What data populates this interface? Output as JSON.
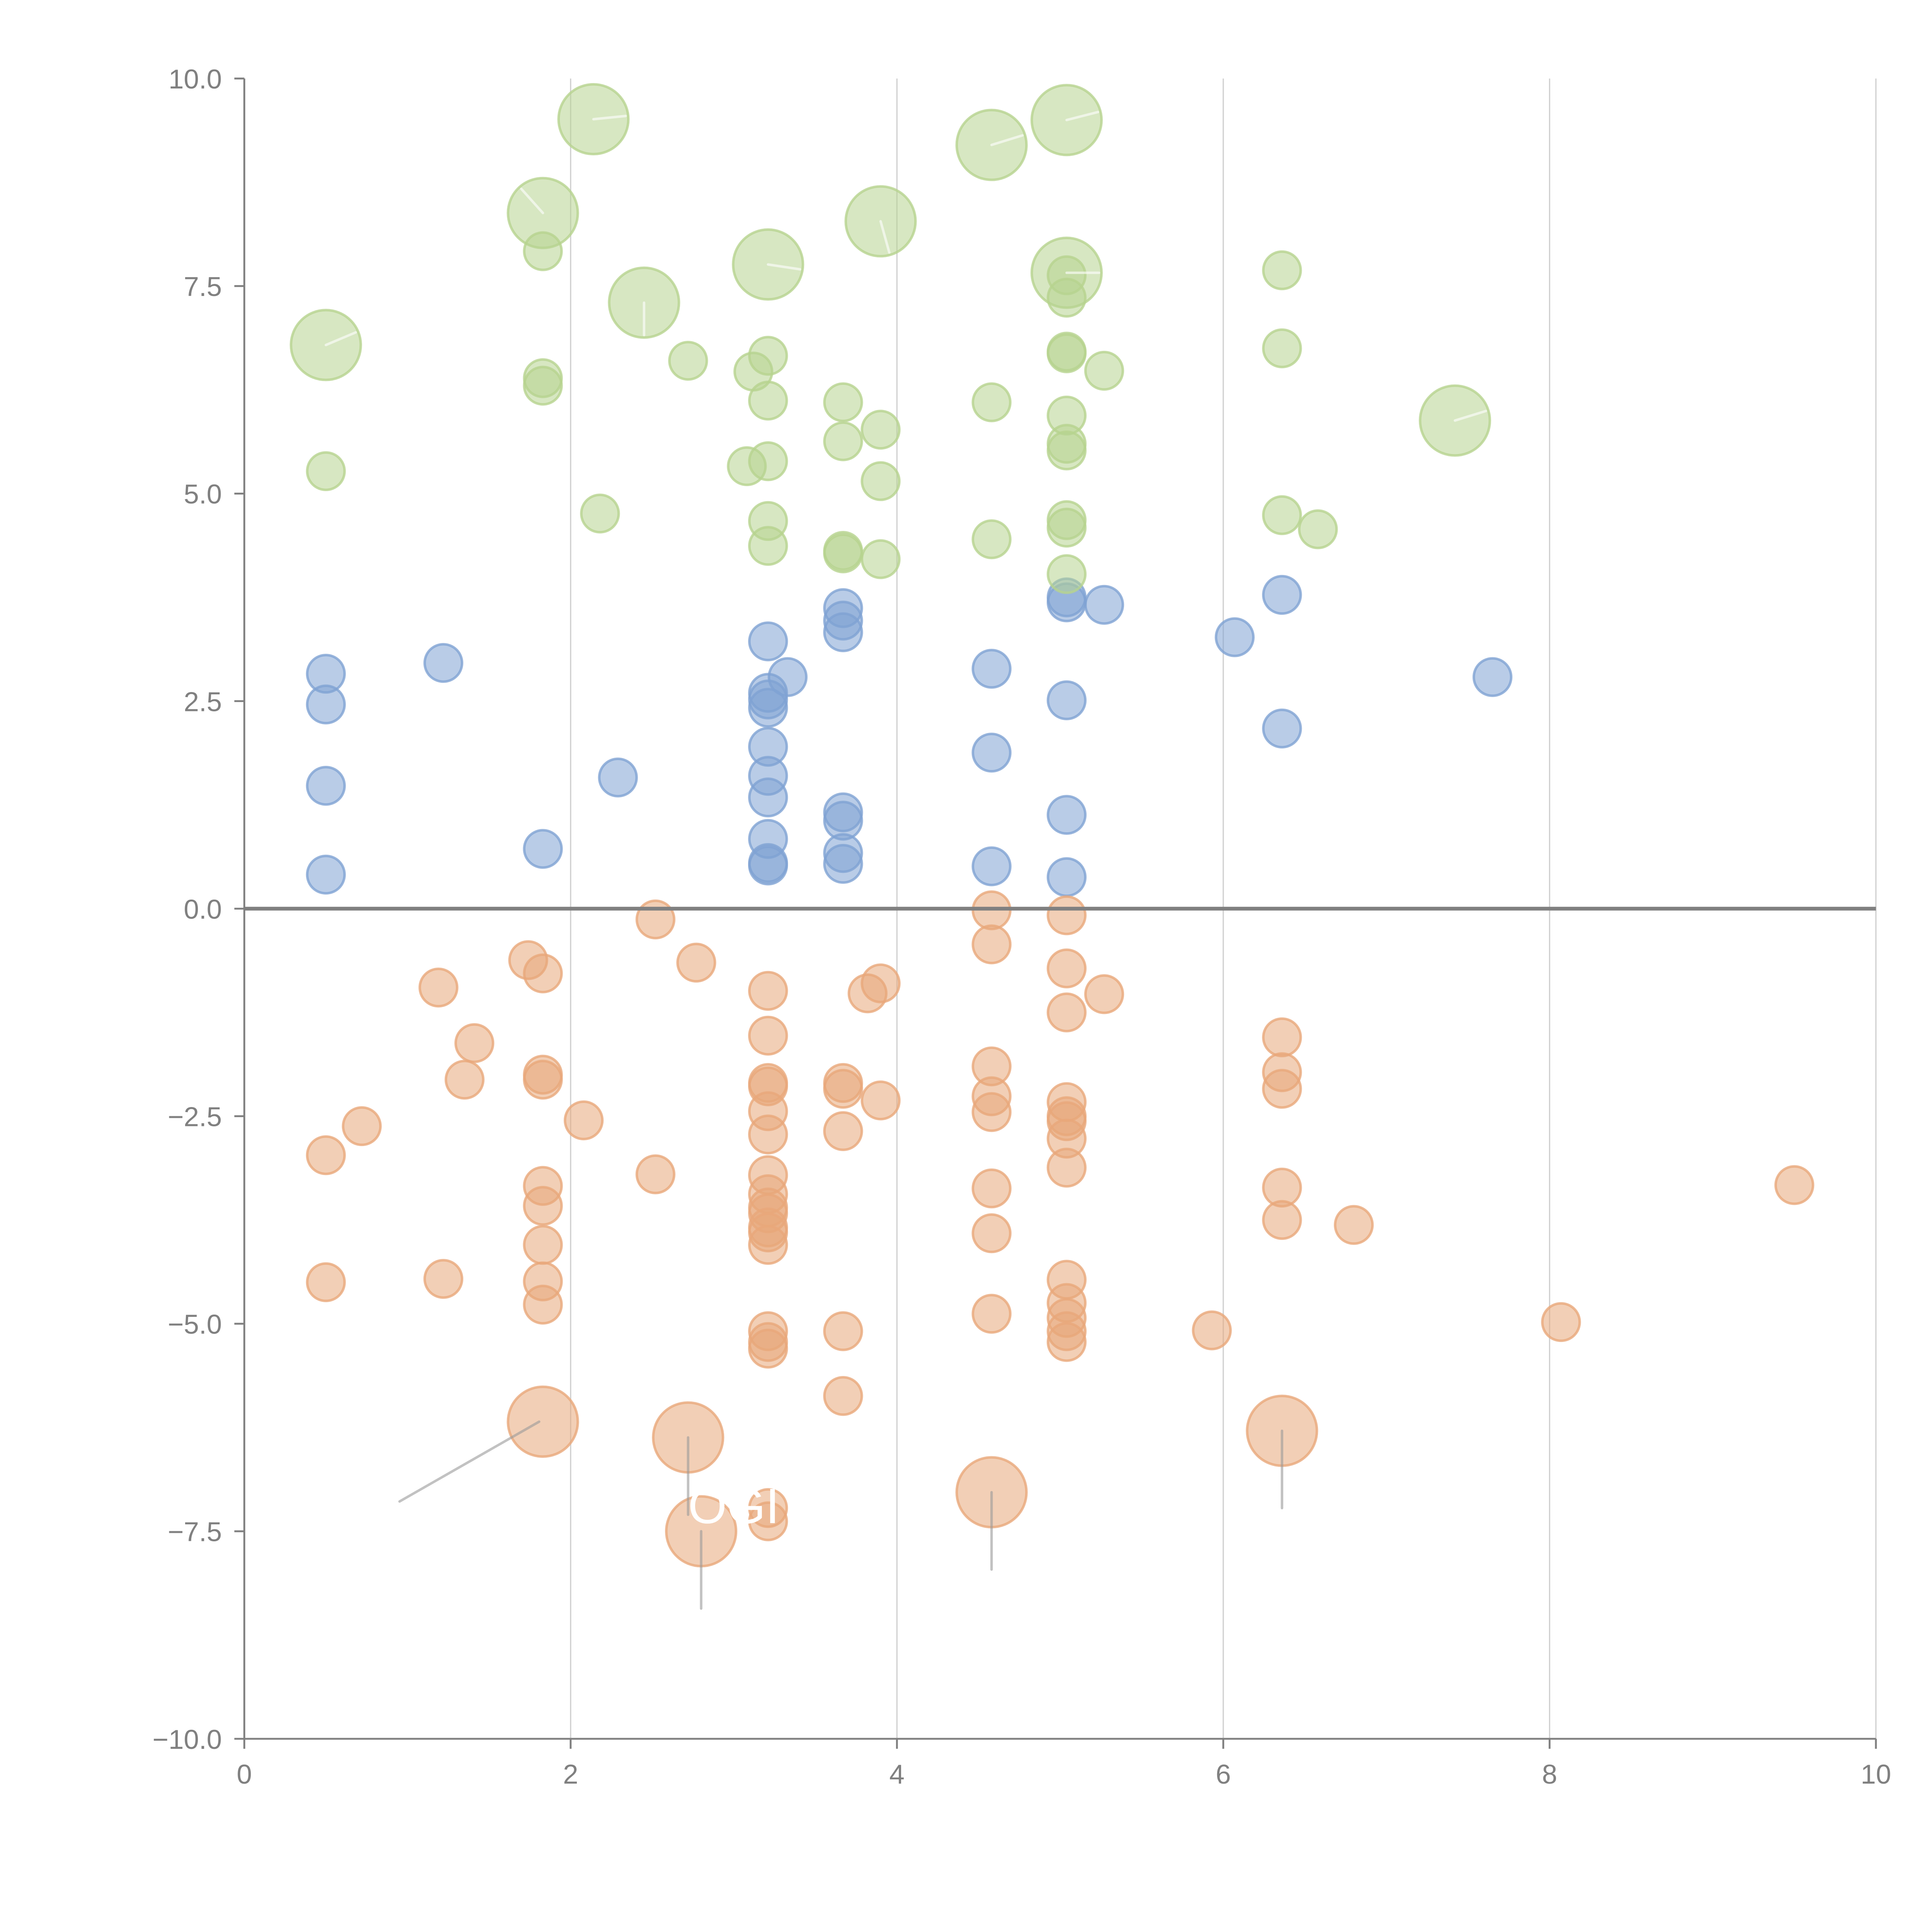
{
  "chart_data": {
    "type": "scatter",
    "title": "",
    "xlabel": "",
    "ylabel": "",
    "xlim": [
      0,
      10
    ],
    "ylim": [
      -10,
      10
    ],
    "x_ticks": [
      "0",
      "2",
      "4",
      "6",
      "8",
      "10"
    ],
    "x_tick_values": [
      0,
      2,
      4,
      6,
      8,
      10
    ],
    "y_ticks": [
      "−10.0",
      "−7.5",
      "−5.0",
      "−2.5",
      "0.0",
      "2.5",
      "5.0",
      "7.5",
      "10.0"
    ],
    "y_tick_values": [
      -10,
      -7.5,
      -5,
      -2.5,
      0,
      2.5,
      5,
      7.5,
      10
    ],
    "grid": "vertical",
    "zero_line": true,
    "legend": "none",
    "annotation_text": "OGI",
    "series": [
      {
        "name": "blue",
        "color": "#7fa3d3",
        "points": [
          [
            0.5,
            2.83
          ],
          [
            0.5,
            2.46
          ],
          [
            0.5,
            1.48
          ],
          [
            0.5,
            0.41
          ],
          [
            1.22,
            2.96
          ],
          [
            1.83,
            0.72
          ],
          [
            2.29,
            1.58
          ],
          [
            3.21,
            3.22
          ],
          [
            3.21,
            2.6
          ],
          [
            3.21,
            2.52
          ],
          [
            3.21,
            2.42
          ],
          [
            3.21,
            1.95
          ],
          [
            3.21,
            1.6
          ],
          [
            3.21,
            1.34
          ],
          [
            3.21,
            0.84
          ],
          [
            3.21,
            0.55
          ],
          [
            3.21,
            0.52
          ],
          [
            3.33,
            2.79
          ],
          [
            3.67,
            3.62
          ],
          [
            3.67,
            3.47
          ],
          [
            3.67,
            3.33
          ],
          [
            3.67,
            1.16
          ],
          [
            3.67,
            1.06
          ],
          [
            3.67,
            0.67
          ],
          [
            3.67,
            0.54
          ],
          [
            4.58,
            2.89
          ],
          [
            4.58,
            1.88
          ],
          [
            4.58,
            0.51
          ],
          [
            5.04,
            3.75
          ],
          [
            5.04,
            3.69
          ],
          [
            5.04,
            2.51
          ],
          [
            5.04,
            1.13
          ],
          [
            5.04,
            0.38
          ],
          [
            5.27,
            3.66
          ],
          [
            6.07,
            3.27
          ],
          [
            6.36,
            3.78
          ],
          [
            6.36,
            2.17
          ],
          [
            7.65,
            2.79
          ]
        ]
      },
      {
        "name": "green",
        "color": "#b6d38f",
        "points": [
          [
            0.5,
            5.27
          ],
          [
            1.83,
            7.92
          ],
          [
            1.83,
            6.39
          ],
          [
            1.83,
            6.3
          ],
          [
            2.18,
            4.76
          ],
          [
            2.72,
            6.6
          ],
          [
            3.08,
            5.33
          ],
          [
            3.12,
            6.47
          ],
          [
            3.21,
            6.66
          ],
          [
            3.21,
            6.12
          ],
          [
            3.21,
            5.39
          ],
          [
            3.21,
            4.67
          ],
          [
            3.21,
            4.37
          ],
          [
            3.67,
            6.1
          ],
          [
            3.67,
            5.63
          ],
          [
            3.67,
            4.31
          ],
          [
            3.67,
            4.28
          ],
          [
            3.9,
            5.77
          ],
          [
            3.9,
            5.15
          ],
          [
            3.9,
            4.21
          ],
          [
            4.58,
            6.1
          ],
          [
            4.58,
            4.45
          ],
          [
            5.04,
            7.63
          ],
          [
            5.04,
            7.36
          ],
          [
            5.04,
            6.71
          ],
          [
            5.04,
            6.69
          ],
          [
            5.04,
            5.94
          ],
          [
            5.04,
            5.6
          ],
          [
            5.04,
            5.52
          ],
          [
            5.04,
            4.68
          ],
          [
            5.04,
            4.59
          ],
          [
            5.04,
            4.03
          ],
          [
            5.27,
            6.48
          ],
          [
            6.36,
            7.69
          ],
          [
            6.36,
            6.75
          ],
          [
            6.36,
            4.74
          ],
          [
            6.58,
            4.57
          ]
        ],
        "large_points": [
          [
            0.5,
            6.79
          ],
          [
            1.83,
            8.38
          ],
          [
            2.14,
            9.51
          ],
          [
            2.45,
            7.3
          ],
          [
            3.21,
            7.76
          ],
          [
            3.9,
            8.28
          ],
          [
            4.58,
            9.2
          ],
          [
            5.04,
            9.5
          ],
          [
            5.04,
            7.66
          ],
          [
            7.42,
            5.88
          ]
        ]
      },
      {
        "name": "orange",
        "color": "#e8a77a",
        "points": [
          [
            0.5,
            -2.97
          ],
          [
            0.5,
            -4.5
          ],
          [
            0.72,
            -2.62
          ],
          [
            1.19,
            -0.95
          ],
          [
            1.22,
            -4.46
          ],
          [
            1.35,
            -2.06
          ],
          [
            1.41,
            -1.62
          ],
          [
            1.74,
            -0.62
          ],
          [
            1.83,
            -0.78
          ],
          [
            1.83,
            -2.0
          ],
          [
            1.83,
            -2.06
          ],
          [
            1.83,
            -3.34
          ],
          [
            1.83,
            -3.58
          ],
          [
            1.83,
            -4.05
          ],
          [
            1.83,
            -4.49
          ],
          [
            1.83,
            -4.77
          ],
          [
            2.08,
            -2.55
          ],
          [
            2.52,
            -0.13
          ],
          [
            2.52,
            -3.2
          ],
          [
            2.77,
            -0.65
          ],
          [
            3.21,
            -0.99
          ],
          [
            3.21,
            -1.53
          ],
          [
            3.21,
            -2.1
          ],
          [
            3.21,
            -2.14
          ],
          [
            3.21,
            -2.44
          ],
          [
            3.21,
            -2.72
          ],
          [
            3.21,
            -3.21
          ],
          [
            3.21,
            -3.44
          ],
          [
            3.21,
            -3.6
          ],
          [
            3.21,
            -3.67
          ],
          [
            3.21,
            -3.84
          ],
          [
            3.21,
            -3.9
          ],
          [
            3.21,
            -4.05
          ],
          [
            3.21,
            -5.09
          ],
          [
            3.21,
            -5.22
          ],
          [
            3.21,
            -5.3
          ],
          [
            3.21,
            -7.22
          ],
          [
            3.21,
            -7.38
          ],
          [
            3.67,
            -2.1
          ],
          [
            3.67,
            -2.17
          ],
          [
            3.67,
            -2.68
          ],
          [
            3.67,
            -5.09
          ],
          [
            3.67,
            -5.87
          ],
          [
            3.82,
            -1.02
          ],
          [
            3.9,
            -0.9
          ],
          [
            3.9,
            -2.31
          ],
          [
            4.58,
            -0.02
          ],
          [
            4.58,
            -0.43
          ],
          [
            4.58,
            -1.9
          ],
          [
            4.58,
            -2.26
          ],
          [
            4.58,
            -2.45
          ],
          [
            4.58,
            -3.37
          ],
          [
            4.58,
            -3.91
          ],
          [
            4.58,
            -4.88
          ],
          [
            5.04,
            -0.08
          ],
          [
            5.04,
            -0.72
          ],
          [
            5.04,
            -1.25
          ],
          [
            5.04,
            -2.33
          ],
          [
            5.04,
            -2.5
          ],
          [
            5.04,
            -2.56
          ],
          [
            5.04,
            -2.77
          ],
          [
            5.04,
            -3.12
          ],
          [
            5.04,
            -4.47
          ],
          [
            5.04,
            -4.75
          ],
          [
            5.04,
            -4.93
          ],
          [
            5.04,
            -5.09
          ],
          [
            5.04,
            -5.22
          ],
          [
            5.27,
            -1.03
          ],
          [
            5.93,
            -5.08
          ],
          [
            6.36,
            -1.55
          ],
          [
            6.36,
            -1.97
          ],
          [
            6.36,
            -2.17
          ],
          [
            6.36,
            -3.36
          ],
          [
            6.36,
            -3.75
          ],
          [
            6.8,
            -3.81
          ],
          [
            8.07,
            -4.98
          ],
          [
            9.5,
            -3.33
          ]
        ],
        "large_points": [
          [
            1.83,
            -6.18
          ],
          [
            2.72,
            -6.37
          ],
          [
            2.8,
            -7.5
          ],
          [
            4.58,
            -7.03
          ],
          [
            6.36,
            -6.29
          ]
        ]
      }
    ]
  }
}
